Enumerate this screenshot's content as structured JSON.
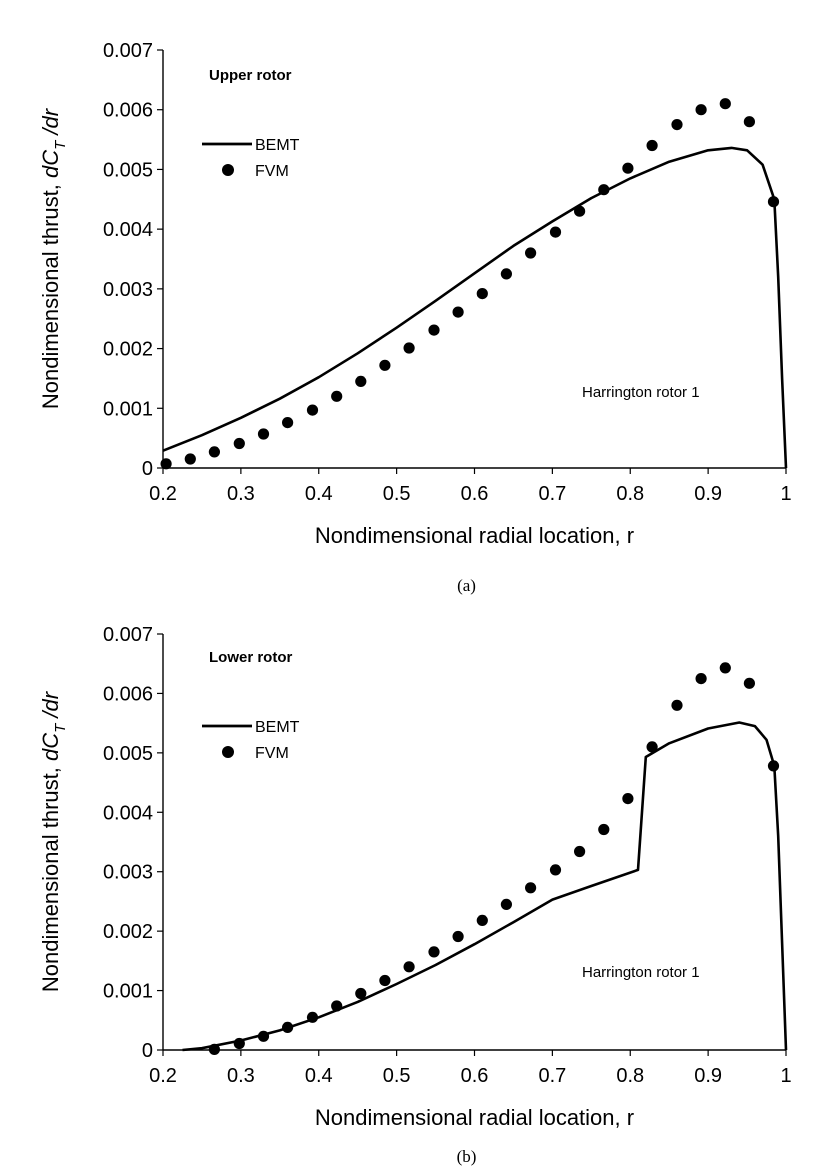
{
  "chart_data": [
    {
      "type": "line",
      "panel_title": "Upper rotor",
      "caption": "(a)",
      "annotation": "Harrington rotor 1",
      "xlabel": "Nondimensional radial location, r",
      "ylabel": "Nondimensional thrust, dC_T /dr",
      "ylabel_parts": {
        "prefix": "Nondimensional thrust, ",
        "d": "dC",
        "sub": "T",
        "suffix": " /dr"
      },
      "xlim": [
        0.2,
        1.0
      ],
      "ylim": [
        0,
        0.007
      ],
      "xticks": [
        0.2,
        0.3,
        0.4,
        0.5,
        0.6,
        0.7,
        0.8,
        0.9,
        1.0
      ],
      "xtick_labels": [
        "0.2",
        "0.3",
        "0.4",
        "0.5",
        "0.6",
        "0.7",
        "0.8",
        "0.9",
        "1"
      ],
      "yticks": [
        0,
        0.001,
        0.002,
        0.003,
        0.004,
        0.005,
        0.006,
        0.007
      ],
      "ytick_labels": [
        "0",
        "0.001",
        "0.002",
        "0.003",
        "0.004",
        "0.005",
        "0.006",
        "0.007"
      ],
      "grid": false,
      "legend_position": "top-left",
      "series": [
        {
          "name": "BEMT",
          "style": "line",
          "x": [
            0.2,
            0.25,
            0.3,
            0.35,
            0.4,
            0.45,
            0.5,
            0.55,
            0.6,
            0.65,
            0.7,
            0.75,
            0.8,
            0.85,
            0.9,
            0.93,
            0.95,
            0.97,
            0.985,
            0.99,
            0.995,
            1.0
          ],
          "y": [
            0.00029,
            0.00055,
            0.00084,
            0.00116,
            0.00152,
            0.00192,
            0.00235,
            0.0028,
            0.00326,
            0.00372,
            0.00413,
            0.00452,
            0.00485,
            0.00513,
            0.00532,
            0.00536,
            0.00532,
            0.00508,
            0.0045,
            0.0032,
            0.0015,
            0.0
          ]
        },
        {
          "name": "FVM",
          "style": "markers",
          "x": [
            0.204,
            0.235,
            0.266,
            0.298,
            0.329,
            0.36,
            0.392,
            0.423,
            0.454,
            0.485,
            0.516,
            0.548,
            0.579,
            0.61,
            0.641,
            0.672,
            0.704,
            0.735,
            0.766,
            0.797,
            0.828,
            0.86,
            0.891,
            0.922,
            0.953,
            0.984
          ],
          "y": [
            7e-05,
            0.00015,
            0.00027,
            0.00041,
            0.00057,
            0.00076,
            0.00097,
            0.0012,
            0.00145,
            0.00172,
            0.00201,
            0.00231,
            0.00261,
            0.00292,
            0.00325,
            0.0036,
            0.00395,
            0.0043,
            0.00466,
            0.00502,
            0.0054,
            0.00575,
            0.006,
            0.0061,
            0.0058,
            0.00446
          ]
        }
      ]
    },
    {
      "type": "line",
      "panel_title": "Lower rotor",
      "caption": "(b)",
      "annotation": "Harrington rotor 1",
      "xlabel": "Nondimensional radial location, r",
      "ylabel": "Nondimensional thrust, dC_T /dr",
      "ylabel_parts": {
        "prefix": "Nondimensional thrust, ",
        "d": "dC",
        "sub": "T",
        "suffix": " /dr"
      },
      "xlim": [
        0.2,
        1.0
      ],
      "ylim": [
        0,
        0.007
      ],
      "xticks": [
        0.2,
        0.3,
        0.4,
        0.5,
        0.6,
        0.7,
        0.8,
        0.9,
        1.0
      ],
      "xtick_labels": [
        "0.2",
        "0.3",
        "0.4",
        "0.5",
        "0.6",
        "0.7",
        "0.8",
        "0.9",
        "1"
      ],
      "yticks": [
        0,
        0.001,
        0.002,
        0.003,
        0.004,
        0.005,
        0.006,
        0.007
      ],
      "ytick_labels": [
        "0",
        "0.001",
        "0.002",
        "0.003",
        "0.004",
        "0.005",
        "0.006",
        "0.007"
      ],
      "grid": false,
      "legend_position": "top-left",
      "series": [
        {
          "name": "BEMT",
          "style": "line",
          "x": [
            0.225,
            0.25,
            0.3,
            0.35,
            0.4,
            0.45,
            0.5,
            0.55,
            0.6,
            0.65,
            0.7,
            0.75,
            0.81,
            0.82,
            0.85,
            0.9,
            0.94,
            0.96,
            0.975,
            0.985,
            0.99,
            0.995,
            1.0
          ],
          "y": [
            0.0,
            3e-05,
            0.00016,
            0.00033,
            0.00055,
            0.00081,
            0.00111,
            0.00143,
            0.00178,
            0.00215,
            0.00253,
            0.00276,
            0.00303,
            0.00493,
            0.00516,
            0.00541,
            0.00551,
            0.00545,
            0.00522,
            0.00478,
            0.0036,
            0.0018,
            0.0
          ]
        },
        {
          "name": "FVM",
          "style": "markers",
          "x": [
            0.266,
            0.298,
            0.329,
            0.36,
            0.392,
            0.423,
            0.454,
            0.485,
            0.516,
            0.548,
            0.579,
            0.61,
            0.641,
            0.672,
            0.704,
            0.735,
            0.766,
            0.797,
            0.828,
            0.86,
            0.891,
            0.922,
            0.953,
            0.984
          ],
          "y": [
            1e-05,
            0.00011,
            0.00023,
            0.00038,
            0.00055,
            0.00074,
            0.00095,
            0.00117,
            0.0014,
            0.00165,
            0.00191,
            0.00218,
            0.00245,
            0.00273,
            0.00303,
            0.00334,
            0.00371,
            0.00423,
            0.0051,
            0.0058,
            0.00625,
            0.00643,
            0.00617,
            0.00478
          ]
        }
      ]
    }
  ]
}
